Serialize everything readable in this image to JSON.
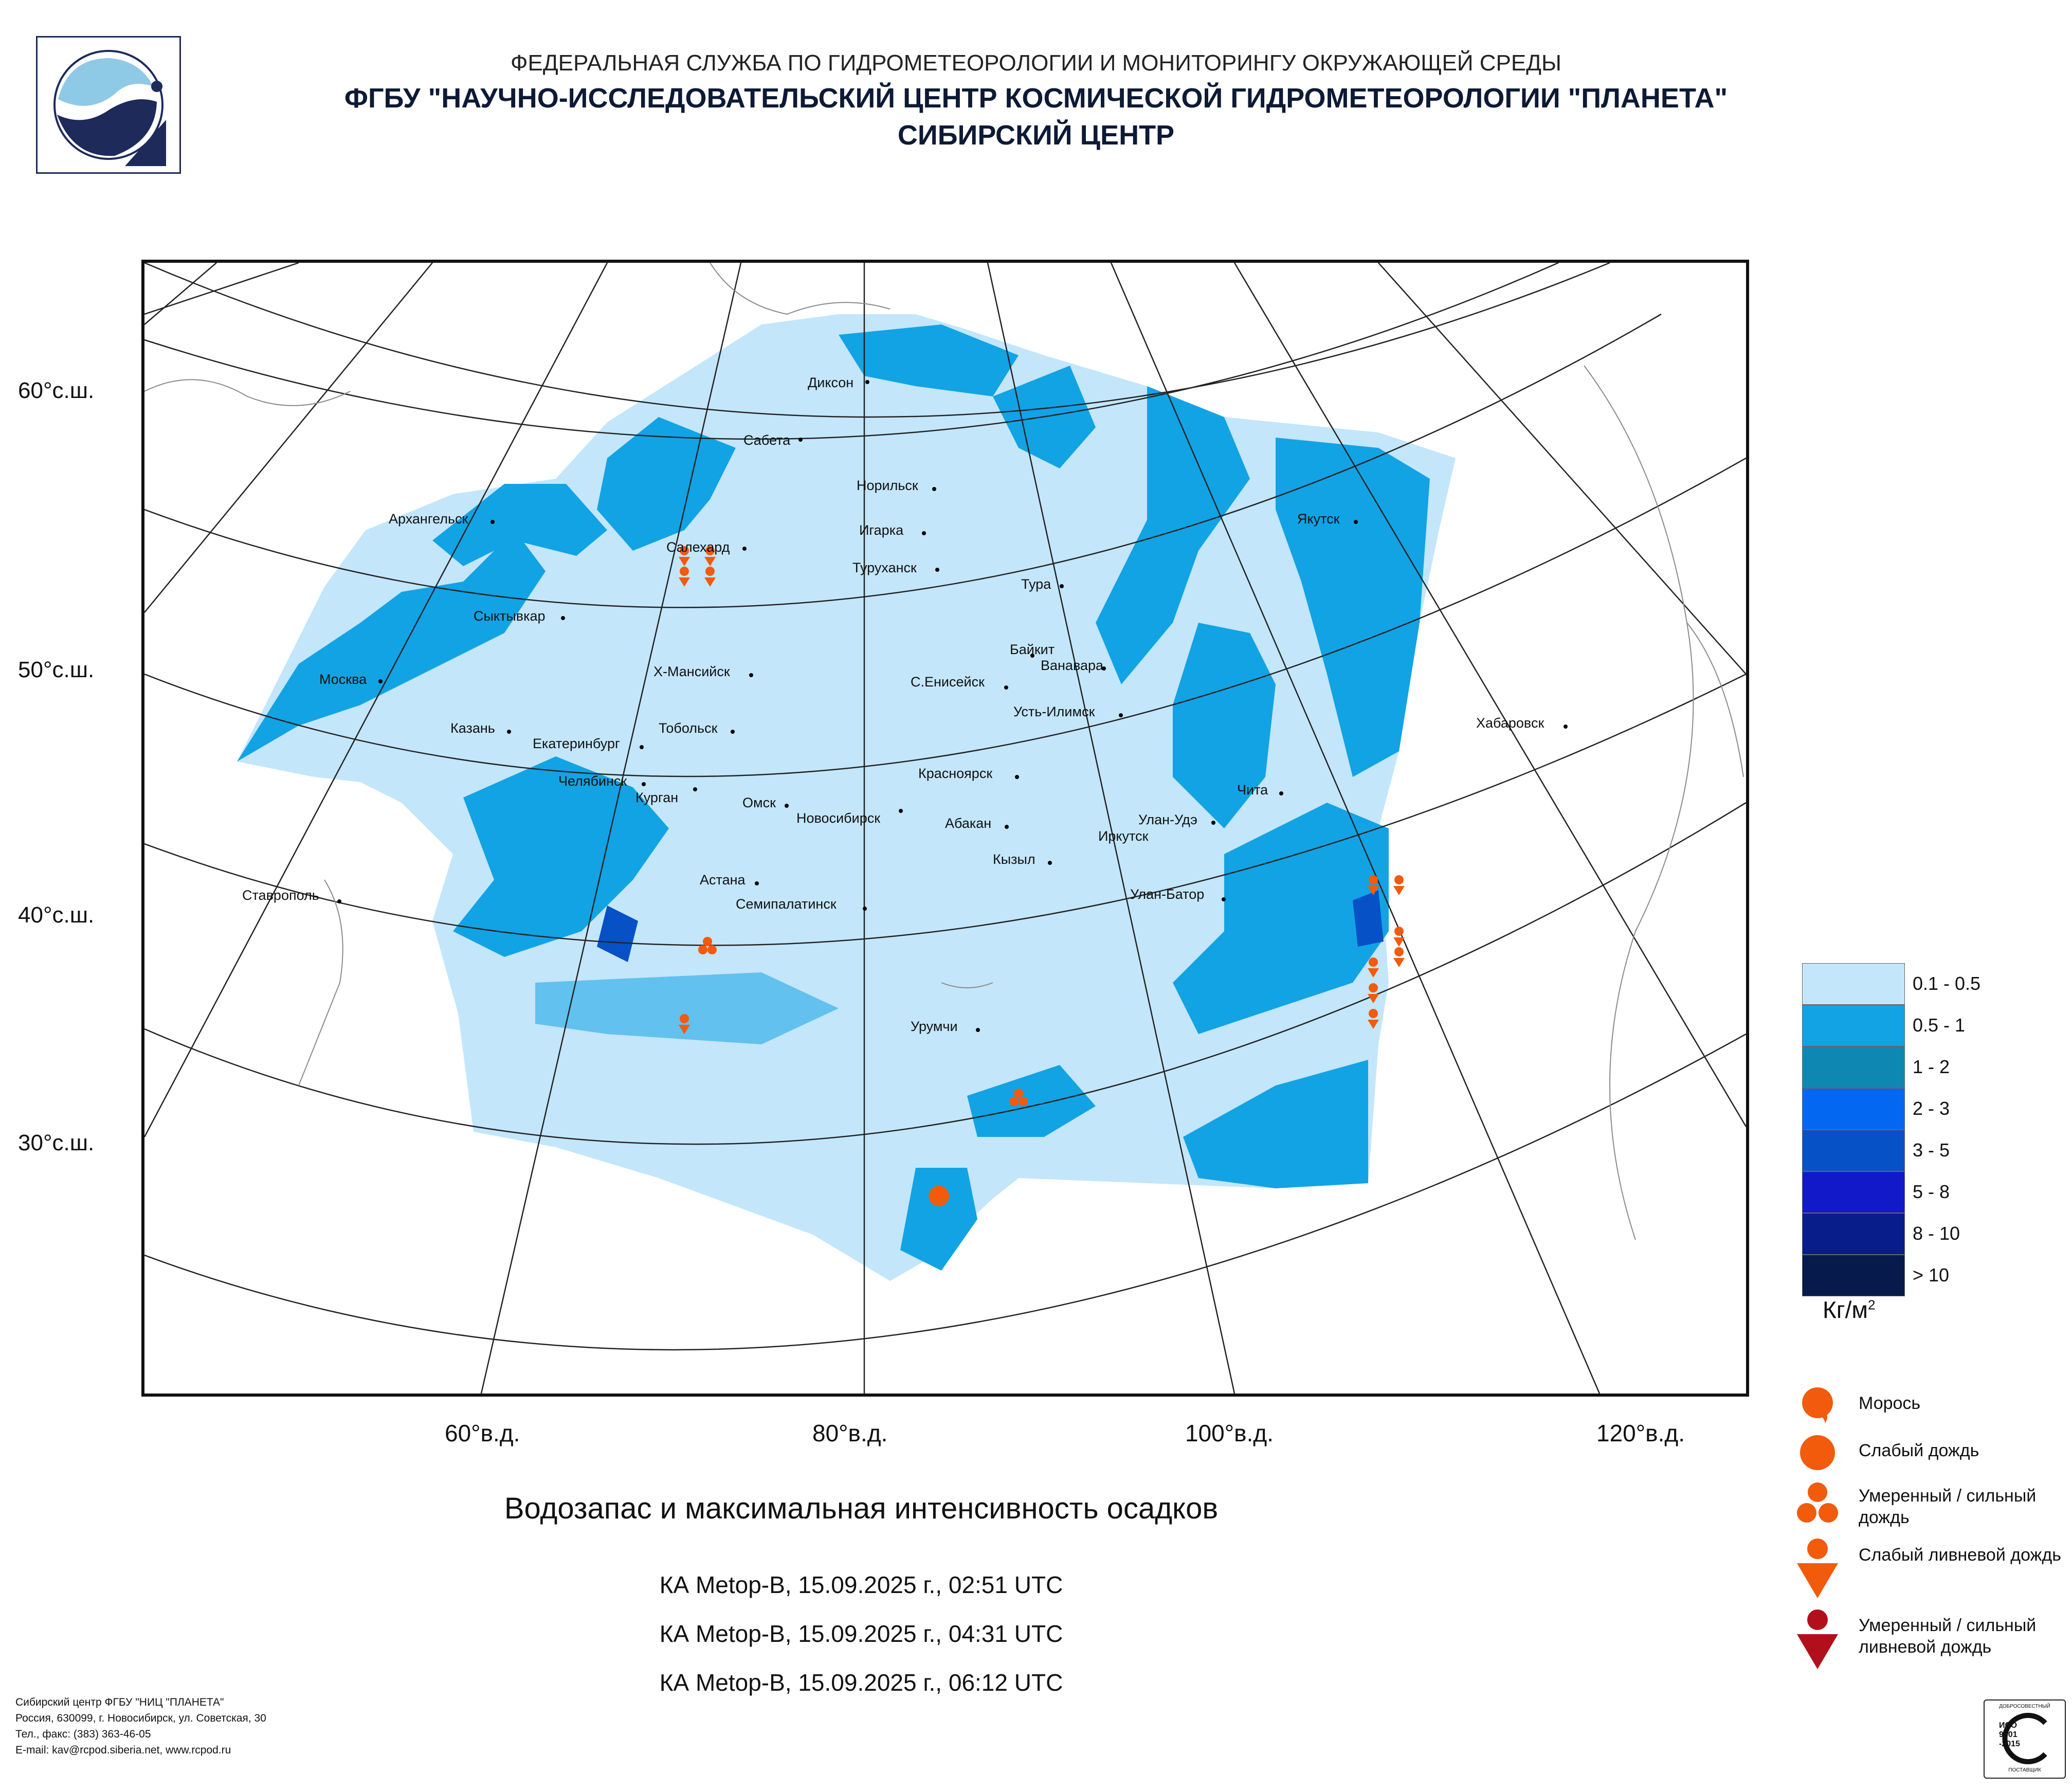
{
  "header": {
    "line1": "ФЕДЕРАЛЬНАЯ СЛУЖБА ПО ГИДРОМЕТЕОРОЛОГИИ И МОНИТОРИНГУ ОКРУЖАЮЩЕЙ СРЕДЫ",
    "line2": "ФГБУ \"НАУЧНО-ИССЛЕДОВАТЕЛЬСКИЙ ЦЕНТР КОСМИЧЕСКОЙ ГИДРОМЕТЕОРОЛОГИИ \"ПЛАНЕТА\"",
    "line3": "СИБИРСКИЙ ЦЕНТР"
  },
  "map": {
    "lat_labels": [
      "60°с.ш.",
      "50°с.ш.",
      "40°с.ш.",
      "30°с.ш."
    ],
    "lon_labels": [
      "60°в.д.",
      "80°в.д.",
      "100°в.д.",
      "120°в.д."
    ],
    "cities": [
      {
        "name": "Диксон"
      },
      {
        "name": "Сабета"
      },
      {
        "name": "Норильск"
      },
      {
        "name": "Архангельск"
      },
      {
        "name": "Салехард"
      },
      {
        "name": "Игарка"
      },
      {
        "name": "Туруханск"
      },
      {
        "name": "Якутск"
      },
      {
        "name": "Сыктывкар"
      },
      {
        "name": "Тура"
      },
      {
        "name": "Москва"
      },
      {
        "name": "Х-Мансийск"
      },
      {
        "name": "Байкит"
      },
      {
        "name": "Ванавара"
      },
      {
        "name": "С.Енисейск"
      },
      {
        "name": "Усть-Илимск"
      },
      {
        "name": "Казань"
      },
      {
        "name": "Екатеринбург"
      },
      {
        "name": "Тобольск"
      },
      {
        "name": "Хабаровск"
      },
      {
        "name": "Челябинск"
      },
      {
        "name": "Курган"
      },
      {
        "name": "Красноярск"
      },
      {
        "name": "Омск"
      },
      {
        "name": "Новосибирск"
      },
      {
        "name": "Абакан"
      },
      {
        "name": "Чита"
      },
      {
        "name": "Улан-Удэ"
      },
      {
        "name": "Иркутск"
      },
      {
        "name": "Кызыл"
      },
      {
        "name": "Астана"
      },
      {
        "name": "Улан-Батор"
      },
      {
        "name": "Ставрополь"
      },
      {
        "name": "Семипалатинск"
      },
      {
        "name": "Урумчи"
      }
    ]
  },
  "legend": {
    "colors": [
      {
        "label": "0.1 - 0.5",
        "color": "#c3e6fb"
      },
      {
        "label": "0.5 - 1",
        "color": "#12a3e4"
      },
      {
        "label": "1 - 2",
        "color": "#0f87b3"
      },
      {
        "label": "2 - 3",
        "color": "#0467f2"
      },
      {
        "label": "3 - 5",
        "color": "#0751c7"
      },
      {
        "label": "5 - 8",
        "color": "#1219c8"
      },
      {
        "label": "8 - 10",
        "color": "#081d8a"
      },
      {
        "label": "> 10",
        "color": "#061a4c"
      }
    ],
    "unit": "Кг/м",
    "unit_sup": "2",
    "symbols": [
      {
        "label": "Морось",
        "color": "#f25a0c"
      },
      {
        "label": "Слабый дождь",
        "color": "#f25a0c"
      },
      {
        "label": "Умеренный / сильный дождь",
        "color": "#f25a0c"
      },
      {
        "label": "Слабый ливневой дождь",
        "color": "#f25a0c"
      },
      {
        "label": "Умеренный / сильный ливневой дождь",
        "color": "#b20f1d"
      }
    ]
  },
  "title": "Водозапас и максимальная интенсивность осадков",
  "passes": [
    "КА Metop-B, 15.09.2025 г., 02:51 UTC",
    "КА Metop-B, 15.09.2025 г., 04:31 UTC",
    "КА Metop-B, 15.09.2025 г., 06:12 UTC"
  ],
  "footer": {
    "line1": "Сибирский центр ФГБУ \"НИЦ \"ПЛАНЕТА\"",
    "line2": "Россия, 630099, г. Новосибирск, ул. Советская, 30",
    "line3": "Тел., факс: (383) 363-46-05",
    "line4": "E-mail: kav@rcpod.siberia.net, www.rcpod.ru"
  },
  "iso_badge": {
    "top_text": "ДОБРОСОВЕСТНЫЙ",
    "line1": "ИСО",
    "line2": "9001",
    "line3": "-2015",
    "bottom_text": "ПОСТАВЩИК"
  }
}
